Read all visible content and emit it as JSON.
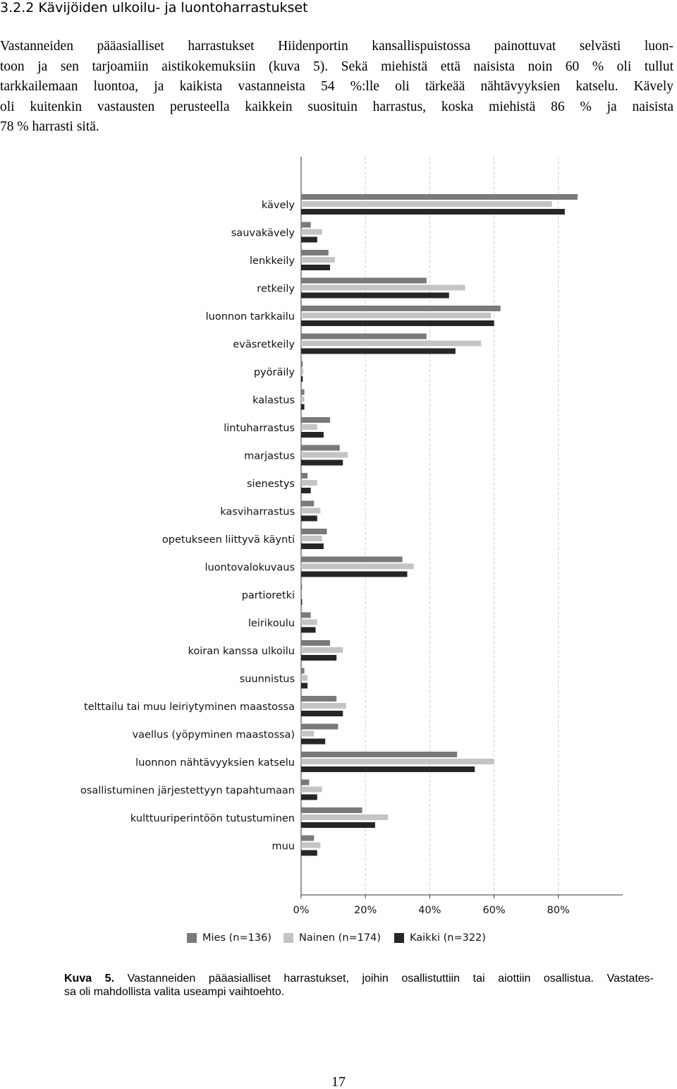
{
  "heading": "3.2.2 Kävijöiden ulkoilu- ja luontoharrastukset",
  "paragraph": [
    "Vastanneiden pääasialliset harrastukset Hiidenportin kansallispuistossa painottuvat selvästi luon-",
    "toon ja sen tarjoamiin aistikokemuksiin (kuva 5). Sekä miehistä että naisista noin 60 % oli tullut",
    "tarkkailemaan luontoa, ja kaikista vastanneista 54 %:lle oli tärkeää nähtävyyksien katselu. Kävely",
    "oli kuitenkin vastausten perusteella kaikkein suosituin harrastus, koska miehistä 86 % ja naisista",
    "78 % harrasti sitä."
  ],
  "chart_data": {
    "type": "hbar",
    "categories": [
      "kävely",
      "sauvakävely",
      "lenkkeily",
      "retkeily",
      "luonnon tarkkailu",
      "eväsretkeily",
      "pyöräily",
      "kalastus",
      "lintuharrastus",
      "marjastus",
      "sienestys",
      "kasviharrastus",
      "opetukseen liittyvä käynti",
      "luontovalokuvaus",
      "partioretki",
      "leirikoulu",
      "koiran kanssa ulkoilu",
      "suunnistus",
      "telttailu tai muu leiriytyminen maastossa",
      "vaellus (yöpyminen maastossa)",
      "luonnon nähtävyyksien katselu",
      "osallistuminen järjestettyyn tapahtumaan",
      "kulttuuriperintöön tutustuminen",
      "muu"
    ],
    "series": [
      {
        "name": "Mies (n=136)",
        "color": "#7a7a7a",
        "values": [
          86,
          3,
          8.5,
          39,
          62,
          39,
          0.5,
          1,
          9,
          12,
          2,
          4,
          8,
          31.5,
          0.3,
          3,
          9,
          1,
          11,
          11.5,
          48.5,
          2.5,
          19,
          4
        ]
      },
      {
        "name": "Nainen (n=174)",
        "color": "#c4c4c4",
        "values": [
          78,
          6.5,
          10.5,
          51,
          59,
          56,
          0.7,
          1,
          5,
          14.5,
          5,
          6,
          6.5,
          35,
          0,
          5,
          13,
          2,
          14,
          4,
          60,
          6.5,
          27,
          6
        ]
      },
      {
        "name": "Kaikki (n=322)",
        "color": "#262626",
        "values": [
          82,
          5,
          9,
          46,
          60,
          48,
          0.5,
          1,
          7,
          13,
          3,
          5,
          7,
          33,
          0.3,
          4.5,
          11,
          2,
          13,
          7.5,
          54,
          5,
          23,
          5
        ]
      }
    ],
    "xlim": [
      0,
      100
    ],
    "xticks": [
      {
        "value": 0,
        "label": "0%"
      },
      {
        "value": 20,
        "label": "20%"
      },
      {
        "value": 40,
        "label": "40%"
      },
      {
        "value": 60,
        "label": "60%"
      },
      {
        "value": 80,
        "label": "80%"
      }
    ],
    "grid": true
  },
  "caption": {
    "label": "Kuva 5.",
    "lines": [
      " Vastanneiden pääasialliset harrastukset, joihin osallistuttiin tai aiottiin osallistua. Vastates-",
      "sa oli mahdollista valita useampi vaihtoehto."
    ]
  },
  "page_number": "17"
}
